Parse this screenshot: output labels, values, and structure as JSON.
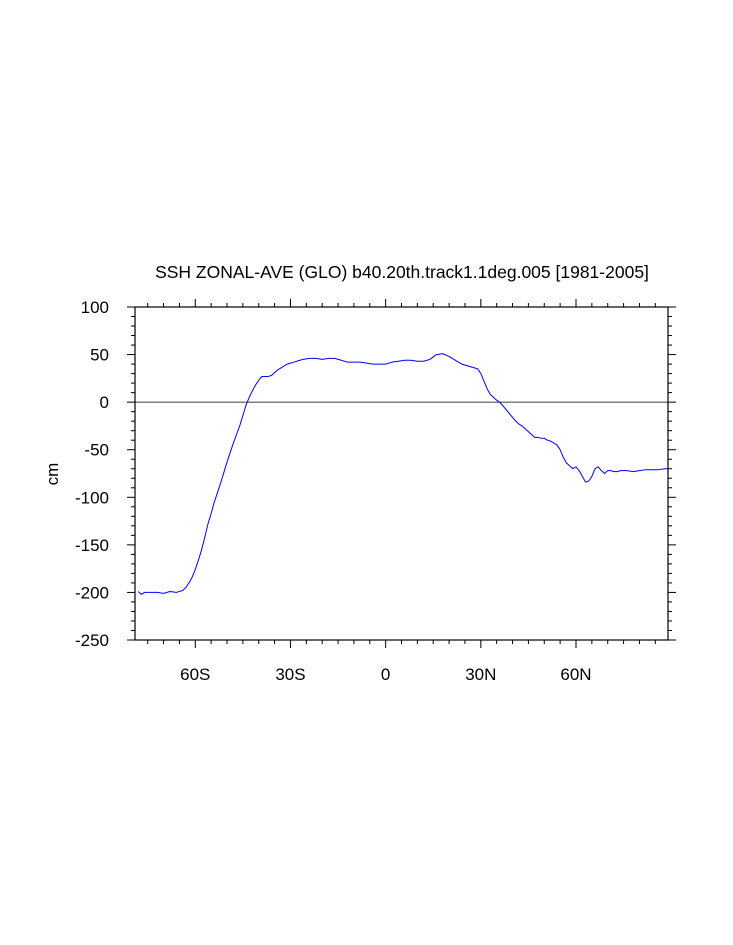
{
  "chart_data": {
    "type": "line",
    "title": "SSH ZONAL-AVE (GLO) b40.20th.track1.1deg.005 [1981-2005]",
    "xlabel": "",
    "ylabel": "cm",
    "xlim": [
      -79,
      89
    ],
    "ylim": [
      -250,
      100
    ],
    "x_ticks": [
      -60,
      -30,
      0,
      30,
      60
    ],
    "x_tick_labels": [
      "60S",
      "30S",
      "0",
      "30N",
      "60N"
    ],
    "y_ticks": [
      100,
      50,
      0,
      -50,
      -100,
      -150,
      -200,
      -250
    ],
    "y_tick_labels": [
      "100",
      "50",
      "0",
      "-50",
      "-100",
      "-150",
      "-200",
      "-250"
    ],
    "reference_line": 0,
    "grid": false,
    "colors": {
      "series": "#0000ff",
      "reference": "#000000"
    },
    "series": [
      {
        "x": [
          -78,
          -77,
          -76,
          -74,
          -72,
          -70,
          -68,
          -66,
          -64,
          -63,
          -62,
          -61,
          -60,
          -59,
          -58,
          -57,
          -56,
          -55,
          -54,
          -53,
          -52,
          -51,
          -50,
          -49,
          -48,
          -47,
          -46,
          -45,
          -44,
          -43,
          -42,
          -41,
          -40,
          -39,
          -38,
          -37,
          -36,
          -35,
          -34,
          -33,
          -32,
          -31,
          -30,
          -29,
          -28,
          -27,
          -26,
          -24,
          -22,
          -20,
          -18,
          -16,
          -14,
          -12,
          -10,
          -8,
          -6,
          -4,
          -2,
          0,
          2,
          4,
          6,
          8,
          10,
          12,
          14,
          16,
          18,
          20,
          22,
          24,
          26,
          28,
          29,
          30,
          31,
          32,
          33,
          34,
          35,
          36,
          37,
          38,
          39,
          40,
          41,
          42,
          43,
          44,
          45,
          46,
          47,
          48,
          49,
          50,
          51,
          52,
          53,
          54,
          55,
          56,
          57,
          58,
          59,
          60,
          61,
          62,
          63,
          64,
          65,
          66,
          67,
          68,
          69,
          70,
          71,
          72,
          73,
          74,
          75,
          76,
          78,
          80,
          82,
          84,
          86,
          88,
          89
        ],
        "y": [
          -199,
          -202,
          -200,
          -200,
          -200,
          -201,
          -199,
          -200,
          -198,
          -195,
          -190,
          -184,
          -176,
          -166,
          -155,
          -142,
          -128,
          -117,
          -105,
          -95,
          -85,
          -74,
          -63,
          -53,
          -43,
          -34,
          -25,
          -14,
          -3,
          5,
          12,
          18,
          23,
          27,
          27,
          27,
          28,
          31,
          34,
          36,
          38,
          40,
          41,
          42,
          43,
          44,
          45,
          46,
          46,
          45,
          46,
          46,
          44,
          42,
          42,
          42,
          41,
          40,
          40,
          40,
          42,
          43,
          44,
          44,
          43,
          43,
          45,
          50,
          51,
          48,
          44,
          40,
          38,
          36,
          35,
          30,
          22,
          14,
          8,
          5,
          2,
          0,
          -4,
          -8,
          -12,
          -16,
          -20,
          -23,
          -25,
          -28,
          -31,
          -34,
          -37,
          -37,
          -38,
          -38,
          -40,
          -41,
          -43,
          -45,
          -50,
          -58,
          -64,
          -67,
          -70,
          -68,
          -72,
          -78,
          -84,
          -83,
          -78,
          -70,
          -68,
          -72,
          -75,
          -72,
          -72,
          -73,
          -73,
          -72,
          -72,
          -72,
          -73,
          -72,
          -71,
          -71,
          -71,
          -70,
          -70
        ]
      }
    ]
  }
}
